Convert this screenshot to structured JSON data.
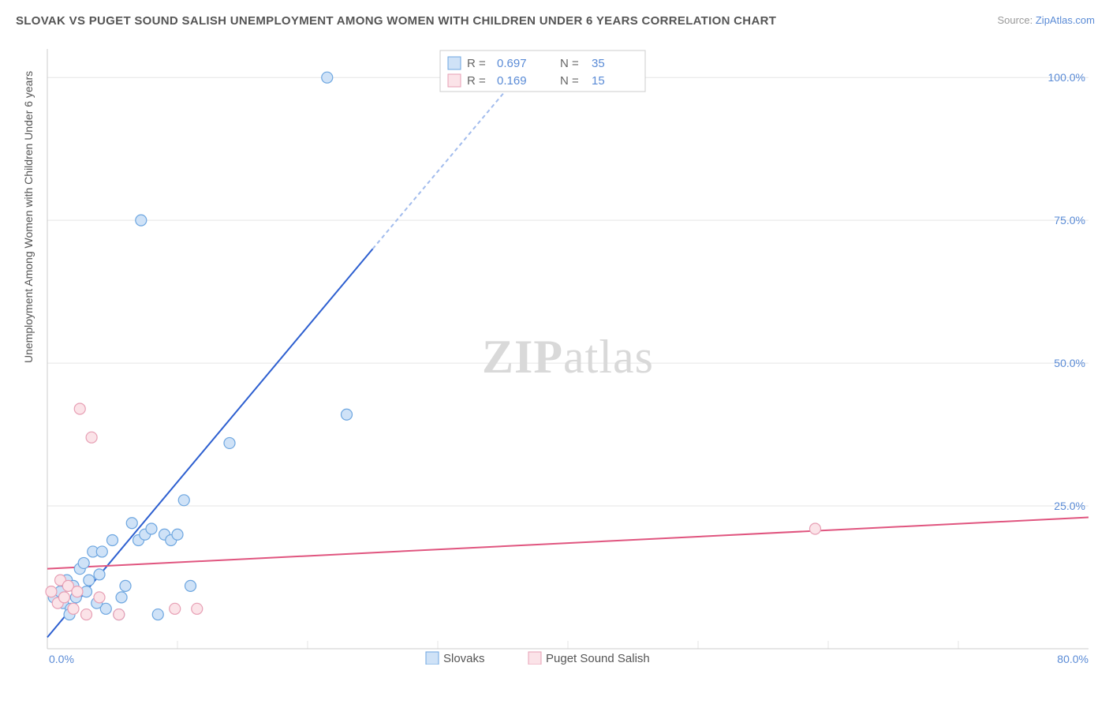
{
  "title": "SLOVAK VS PUGET SOUND SALISH UNEMPLOYMENT AMONG WOMEN WITH CHILDREN UNDER 6 YEARS CORRELATION CHART",
  "source_prefix": "Source: ",
  "source_link": "ZipAtlas.com",
  "ylabel": "Unemployment Among Women with Children Under 6 years",
  "watermark_a": "ZIP",
  "watermark_b": "atlas",
  "chart": {
    "type": "scatter",
    "xlim": [
      0,
      80
    ],
    "ylim": [
      0,
      105
    ],
    "x_ticks": [
      0,
      80
    ],
    "x_tick_labels": [
      "0.0%",
      "80.0%"
    ],
    "y_ticks": [
      25,
      50,
      75,
      100
    ],
    "y_tick_labels": [
      "25.0%",
      "50.0%",
      "75.0%",
      "100.0%"
    ],
    "grid_x": [
      10,
      20,
      30,
      40,
      50,
      60,
      70
    ],
    "grid_y": [
      25,
      50,
      75,
      100
    ],
    "background_color": "#ffffff",
    "grid_color": "#e5e5e5",
    "axis_color": "#cccccc",
    "marker_radius": 7,
    "series": [
      {
        "name": "Slovaks",
        "label": "Slovaks",
        "color_fill": "#cfe2f7",
        "color_stroke": "#6da6e0",
        "trend_color": "#2d5fd0",
        "trend_dash_color": "#a2bced",
        "R": "0.697",
        "N": "35",
        "trend": {
          "x1": 0,
          "y1": 2,
          "x2": 25,
          "y2": 70,
          "dash_to_x": 36.8,
          "dash_to_y": 102
        },
        "points": [
          [
            0.5,
            9
          ],
          [
            1.0,
            10
          ],
          [
            1.2,
            8
          ],
          [
            1.5,
            12
          ],
          [
            1.8,
            7
          ],
          [
            2.0,
            11
          ],
          [
            2.2,
            9
          ],
          [
            2.5,
            14
          ],
          [
            3.0,
            10
          ],
          [
            3.2,
            12
          ],
          [
            3.5,
            17
          ],
          [
            4.0,
            13
          ],
          [
            4.5,
            7
          ],
          [
            5.0,
            19
          ],
          [
            5.5,
            6
          ],
          [
            6.0,
            11
          ],
          [
            6.5,
            22
          ],
          [
            7.0,
            19
          ],
          [
            7.5,
            20
          ],
          [
            8.0,
            21
          ],
          [
            8.5,
            6
          ],
          [
            9.0,
            20
          ],
          [
            9.5,
            19
          ],
          [
            10.0,
            20
          ],
          [
            10.5,
            26
          ],
          [
            11.0,
            11
          ],
          [
            7.2,
            75
          ],
          [
            14.0,
            36
          ],
          [
            21.5,
            100
          ],
          [
            23.0,
            41
          ],
          [
            1.7,
            6
          ],
          [
            2.8,
            15
          ],
          [
            4.2,
            17
          ],
          [
            5.7,
            9
          ],
          [
            3.8,
            8
          ]
        ]
      },
      {
        "name": "Puget Sound Salish",
        "label": "Puget Sound Salish",
        "color_fill": "#fbe3e8",
        "color_stroke": "#e79fb4",
        "trend_color": "#e0557f",
        "R": "0.169",
        "N": "15",
        "trend": {
          "x1": 0,
          "y1": 14,
          "x2": 80,
          "y2": 23
        },
        "points": [
          [
            0.3,
            10
          ],
          [
            0.8,
            8
          ],
          [
            1.0,
            12
          ],
          [
            1.3,
            9
          ],
          [
            1.6,
            11
          ],
          [
            2.0,
            7
          ],
          [
            2.3,
            10
          ],
          [
            2.5,
            42
          ],
          [
            3.0,
            6
          ],
          [
            3.4,
            37
          ],
          [
            4.0,
            9
          ],
          [
            5.5,
            6
          ],
          [
            9.8,
            7
          ],
          [
            11.5,
            7
          ],
          [
            59.0,
            21
          ]
        ]
      }
    ]
  },
  "stats_legend": {
    "r_label": "R =",
    "n_label": "N ="
  },
  "bottom_legend": {
    "items": [
      "Slovaks",
      "Puget Sound Salish"
    ]
  }
}
